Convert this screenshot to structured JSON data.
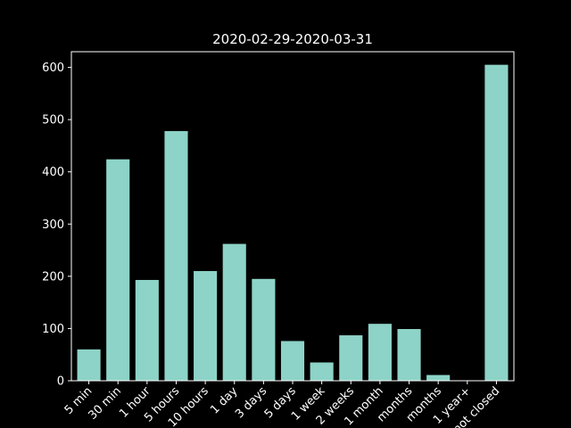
{
  "chart_data": {
    "type": "bar",
    "title": "2020-02-29-2020-03-31",
    "xlabel": "",
    "ylabel": "",
    "categories": [
      "5 min",
      "30 min",
      "1 hour",
      "5 hours",
      "10 hours",
      "1 day",
      "3 days",
      "5 days",
      "1 week",
      "2 weeks",
      "1 month",
      "months",
      "months",
      "1 year+",
      "not closed"
    ],
    "values": [
      60,
      424,
      193,
      478,
      210,
      262,
      195,
      76,
      35,
      87,
      109,
      99,
      11,
      0,
      605
    ],
    "ylim": [
      0,
      630
    ],
    "yticks": [
      0,
      100,
      200,
      300,
      400,
      500,
      600
    ],
    "grid": false,
    "bar_color": "#8dd3c7",
    "background": "#000000",
    "foreground": "#ffffff"
  }
}
